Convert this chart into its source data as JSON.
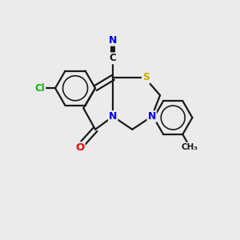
{
  "background_color": "#ebebeb",
  "bond_color": "#1a1a1a",
  "atom_colors": {
    "Cl": "#00bb00",
    "N": "#0000ee",
    "O": "#ee0000",
    "S": "#ccaa00"
  },
  "figsize": [
    3.0,
    3.0
  ],
  "dpi": 100,
  "xlim": [
    0,
    10
  ],
  "ylim": [
    0,
    10
  ]
}
